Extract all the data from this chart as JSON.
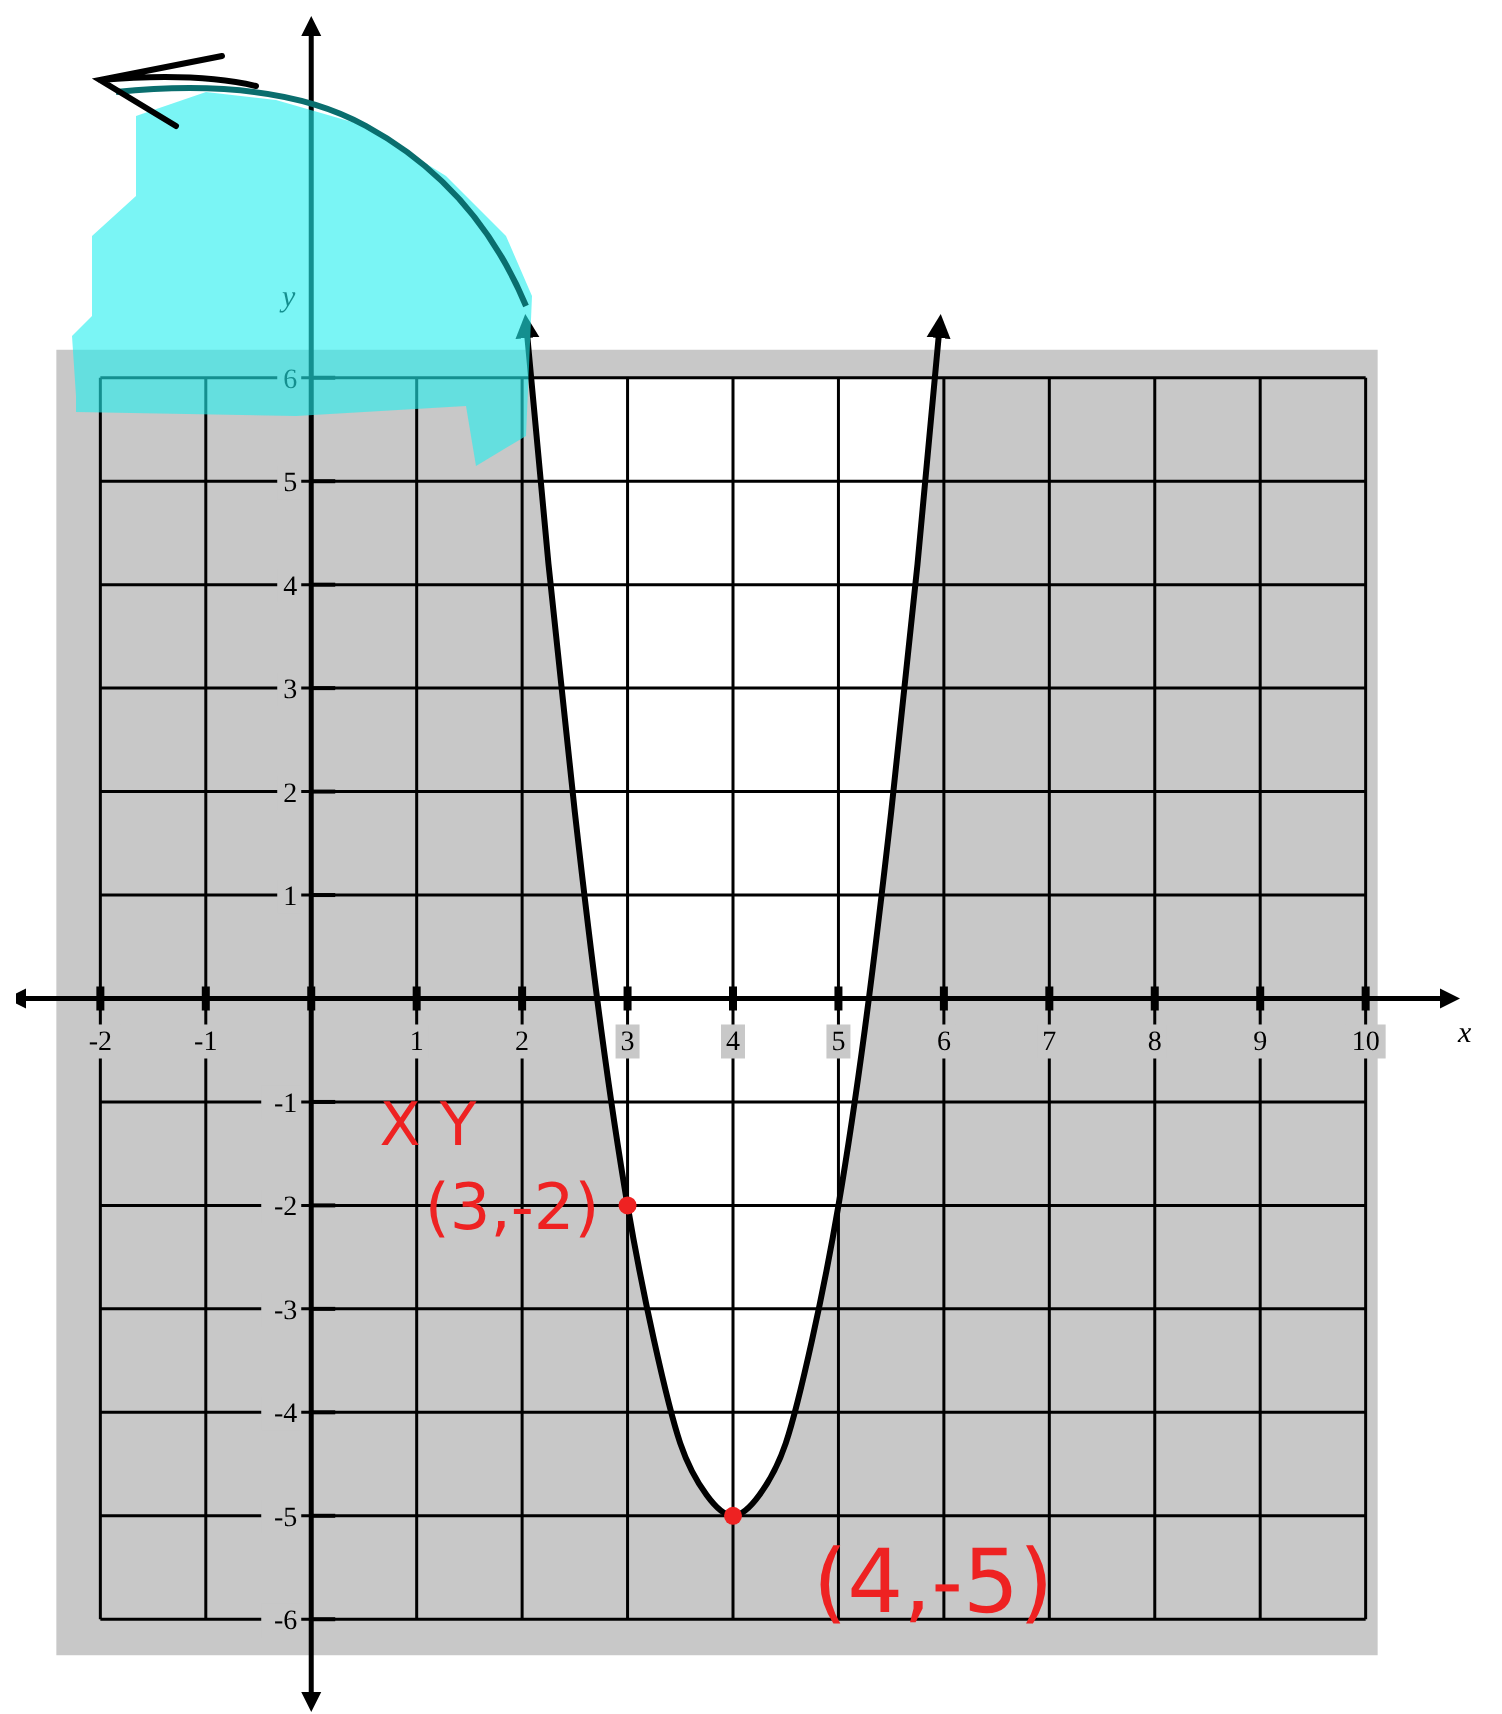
{
  "chart_data": {
    "type": "line",
    "xlabel": "x",
    "ylabel": "y",
    "xlim": [
      -2.8,
      10.8
    ],
    "ylim": [
      -6.8,
      9.4
    ],
    "xticks": [
      -2,
      -1,
      {
        "value": 0,
        "label": null
      },
      1,
      2,
      3,
      4,
      5,
      6,
      7,
      8,
      9,
      10
    ],
    "yticks": [
      -6,
      -5,
      -4,
      -3,
      -2,
      -1,
      {
        "value": 0,
        "label": null
      },
      1,
      2,
      3,
      4,
      5,
      6
    ],
    "grid": true,
    "series": [
      {
        "color": "#000000",
        "line_style": "solid",
        "x": [
          2.04,
          2.25,
          2.5,
          2.75,
          3,
          3.25,
          3.5,
          3.75,
          4,
          4.25,
          4.5,
          4.75,
          5,
          5.25,
          5.5,
          5.75,
          5.96
        ],
        "values": [
          6.5,
          4.2,
          1.8,
          -0.3,
          -2,
          -3.3,
          -4.3,
          -4.8,
          -5,
          -4.8,
          -4.3,
          -3.3,
          -2,
          -0.3,
          1.8,
          4.2,
          6.5
        ]
      },
      {
        "type": "scatter",
        "color": "#ee2222",
        "marker": "circle",
        "x": [
          3,
          4
        ],
        "values": [
          -2,
          -5
        ]
      }
    ],
    "annotations": [
      "X Y",
      {
        "text": "(3,-2)",
        "x": 3,
        "y": -2
      },
      {
        "text": "(4,-5)",
        "x": 4,
        "y": -5
      }
    ]
  }
}
